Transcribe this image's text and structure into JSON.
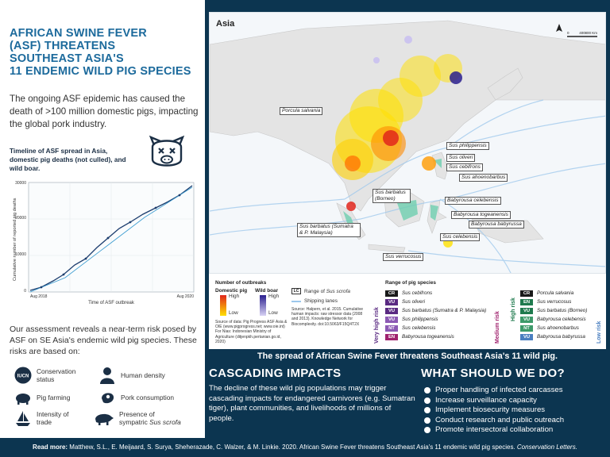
{
  "title": {
    "line1": "AFRICAN SWINE FEVER",
    "line2": "(ASF) THREATENS",
    "line3": "SOUTHEAST ASIA'S",
    "line4": "11 ENDEMIC WILD PIG SPECIES"
  },
  "intro": "The ongoing ASF epidemic has caused the death of >100 million domestic pigs, impacting the global pork industry.",
  "timeline_title": "Timeline of ASF spread in Asia, domestic pig deaths (not culled), and wild boar.",
  "mini_chart": {
    "ylabel": "Cumulative number of reported pig deaths",
    "xlabel": "Time of ASF outbreak",
    "yticks": [
      "0",
      "10000",
      "20000",
      "30000"
    ],
    "xticks": [
      "Aug 2018",
      "Aug 2020"
    ]
  },
  "assessment": "Our assessment reveals a near-term risk posed by ASF on SE Asia's endemic wild pig species. These risks are based on:",
  "factors": {
    "conservation": "Conservation status",
    "iucn": "IUCN",
    "human_density": "Human density",
    "pig_farming": "Pig farming",
    "pork": "Pork consumption",
    "trade": "Intensity of trade",
    "sympatric_prefix": "Presence of sympatric",
    "sympatric_species": "Sus scrofa"
  },
  "map": {
    "title": "Asia",
    "scale_0": "0",
    "scale_mid": "400",
    "scale_end": "800 Km",
    "labels": {
      "porcula": "Porcula salvania",
      "philippensis": "Sus philippensis",
      "oliveri": "Sus oliveri",
      "cebifrons": "Sus cebifrons",
      "ahoenobarbus": "Sus ahoenobarbus",
      "barbatus_borneo": "Sus barbatus (Borneo)",
      "babyrousa_celebensis": "Babyrousa celebensis",
      "babyrousa_togeanensis": "Babyrousa togeanensis",
      "babyrousa_babyrussa": "Babyrousa babyrussa",
      "barbatus_sumatra": "Sus barbatus (Sumatra & P. Malaysia)",
      "celebensis": "Sus celebensis",
      "verrucosus": "Sus verrucosus"
    }
  },
  "legend": {
    "outbreaks_title": "Number of outbreaks",
    "domestic": "Domestic pig",
    "wild": "Wild boar",
    "high": "High",
    "low": "Low",
    "lc": "LC",
    "range_sus": "Range of",
    "range_sus_species": "Sus scrofa",
    "shipping": "Shipping lanes",
    "source1": "Source of data: Pig Progress ASF Asia & OIE (www.pigprogress.net; www.oie.int) For Nias: Indonesian Ministry of Agriculture (ditjenpkh.pertanian.go.id, 2020)",
    "source2": "Source: Halpern, et al. 2015. Cumulative human impacts: raw stressor data (2008 and 2013). Knowledge Network for Biocomplexity. doi:10.5063/F15Q4T2X",
    "range_title": "Range of pig species",
    "very_high": "Very high risk",
    "medium": "Medium risk",
    "high_risk": "High risk",
    "low_risk": "Low risk",
    "species_left": [
      {
        "code": "CR",
        "name": "Sus cebifrons",
        "color": "#1a1a1a"
      },
      {
        "code": "VU",
        "name": "Sus oliveri",
        "color": "#5a2a82"
      },
      {
        "code": "VU",
        "name": "Sus barbatus (Sumatra & P. Malaysia)",
        "color": "#5a2a82"
      },
      {
        "code": "VU",
        "name": "Sus philippensis",
        "color": "#8c5ab4"
      },
      {
        "code": "NT",
        "name": "Sus celebensis",
        "color": "#8c5ab4"
      },
      {
        "code": "EN",
        "name": "Babyrousa togeanensis",
        "color": "#a0226e"
      }
    ],
    "species_right": [
      {
        "code": "CR",
        "name": "Porcula salvania",
        "color": "#1a1a1a"
      },
      {
        "code": "EN",
        "name": "Sus verrucosus",
        "color": "#1f7a4e"
      },
      {
        "code": "VU",
        "name": "Sus barbatus (Borneo)",
        "color": "#1f7a4e"
      },
      {
        "code": "VU",
        "name": "Babyrousa celebensis",
        "color": "#3d9a6a"
      },
      {
        "code": "NT",
        "name": "Sus ahoenobarbus",
        "color": "#3d9a6a"
      },
      {
        "code": "VU",
        "name": "Babyrousa babyrussa",
        "color": "#4a7fc0"
      }
    ]
  },
  "spread_banner": "The spread of African Swine Fever threatens Southeast Asia's 11 wild pig.",
  "cascade": {
    "heading": "CASCADING IMPACTS",
    "text": "The decline of these wild pig populations may trigger cascading impacts for endangered carnivores (e.g. Sumatran tiger), plant communities, and livelihoods of millions of people."
  },
  "todo": {
    "heading": "WHAT SHOULD WE DO?",
    "items": [
      "Proper handling of infected carcasses",
      "Increase surveillance capacity",
      "Implement biosecurity measures",
      "Conduct research and public outreach",
      "Promote intersectoral collaboration"
    ]
  },
  "readmore": {
    "label": "Read more:",
    "citation": "Matthew, S.L., E. Meijaard, S. Surya, Sheherazade, C. Walzer, & M. Linkie. 2020. African Swine Fever threatens Southeast Asia's 11 endemic wild pig species.",
    "journal": "Conservation Letters."
  },
  "colors": {
    "navy": "#0c3550",
    "title_blue": "#1c6a9c",
    "range_green": "#6fcfb0",
    "outbreak_red": "#e0261b",
    "outbreak_yellow": "#ffe000"
  }
}
